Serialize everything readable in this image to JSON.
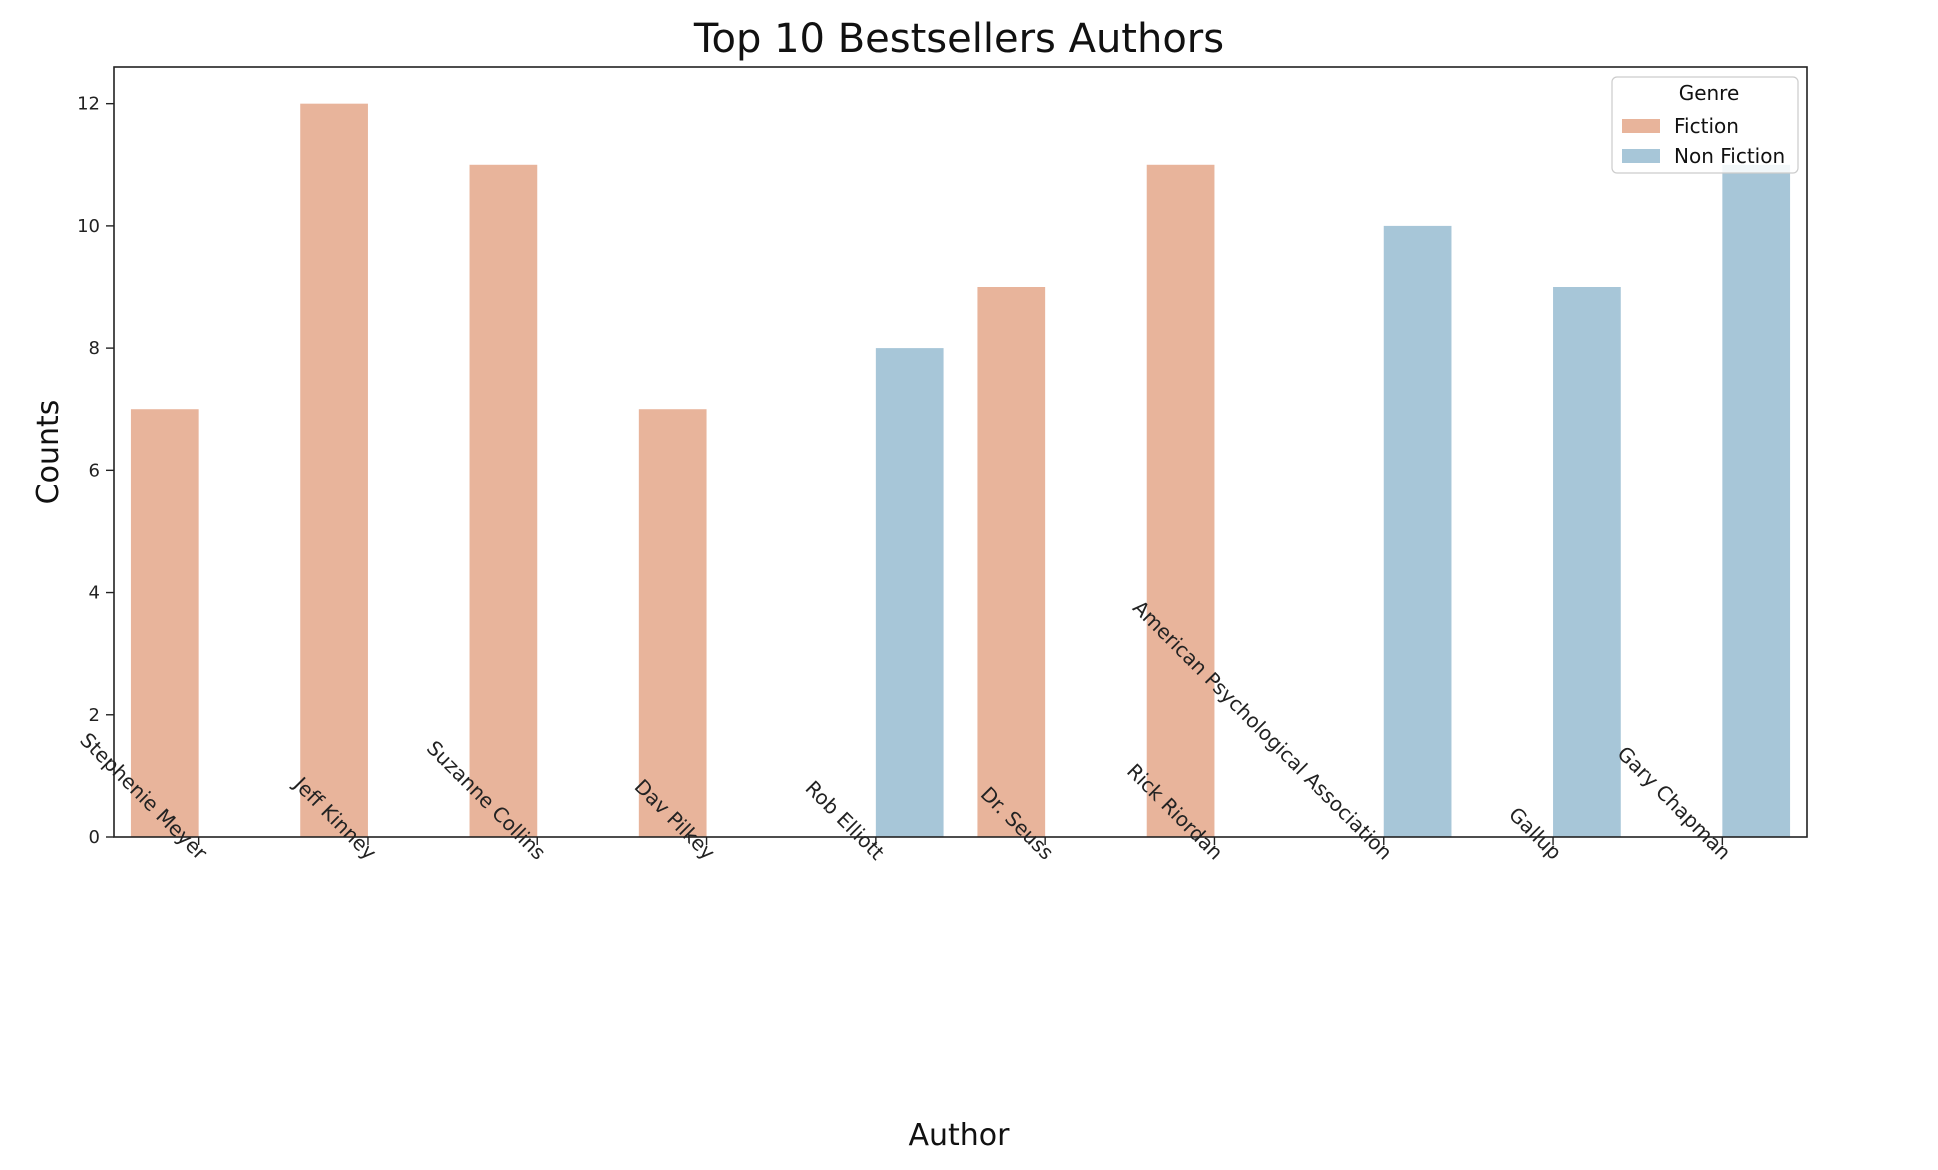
{
  "chart_data": {
    "type": "bar",
    "title": "Top 10 Bestsellers Authors",
    "xlabel": "Author",
    "ylabel": "Counts",
    "ylim": [
      0,
      12.6
    ],
    "yticks": [
      0,
      2,
      4,
      6,
      8,
      10,
      12
    ],
    "grid": false,
    "categories": [
      "Stephenie Meyer",
      "Jeff Kinney",
      "Suzanne Collins",
      "Dav Pilkey",
      "Rob Elliott",
      "Dr. Seuss",
      "Rick Riordan",
      "American Psychological Association",
      "Gallup",
      "Gary Chapman"
    ],
    "series": [
      {
        "name": "Fiction",
        "color": "#e8b49b",
        "values": [
          7,
          12,
          11,
          7,
          null,
          9,
          11,
          null,
          null,
          null
        ]
      },
      {
        "name": "Non Fiction",
        "color": "#a7c6d8",
        "values": [
          null,
          null,
          null,
          null,
          8,
          null,
          null,
          10,
          9,
          11
        ]
      }
    ],
    "legend": {
      "title": "Genre",
      "placement": "top-right"
    }
  }
}
